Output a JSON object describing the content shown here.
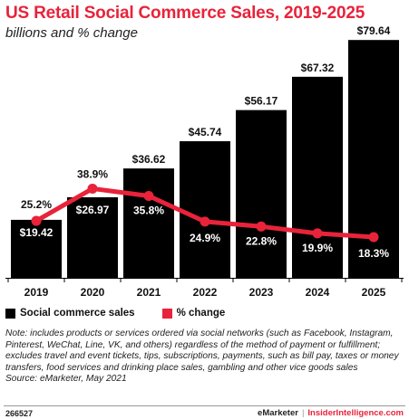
{
  "header": {
    "title": "US Retail Social Commerce Sales, 2019-2025",
    "subtitle": "billions and % change"
  },
  "chart_data": {
    "type": "bar",
    "categories": [
      "2019",
      "2020",
      "2021",
      "2022",
      "2023",
      "2024",
      "2025"
    ],
    "series": [
      {
        "name": "Social commerce sales",
        "type": "bar",
        "values": [
          19.42,
          26.97,
          36.62,
          45.74,
          56.17,
          67.32,
          79.64
        ],
        "labels": [
          "$19.42",
          "$26.97",
          "$36.62",
          "$45.74",
          "$56.17",
          "$67.32",
          "$79.64"
        ],
        "color": "#000000"
      },
      {
        "name": "% change",
        "type": "line",
        "values": [
          25.2,
          38.9,
          35.8,
          24.9,
          22.8,
          19.9,
          18.3
        ],
        "labels": [
          "25.2%",
          "38.9%",
          "35.8%",
          "24.9%",
          "22.8%",
          "19.9%",
          "18.3%"
        ],
        "color": "#e8233a"
      }
    ],
    "legend_position": "bottom-left",
    "grid": false
  },
  "legend": {
    "items": [
      {
        "label": "Social commerce sales",
        "color": "#000000"
      },
      {
        "label": "% change",
        "color": "#e8233a"
      }
    ]
  },
  "note": {
    "text": "Note: includes products or services ordered via social networks (such as Facebook, Instagram, Pinterest, WeChat, Line, VK, and others) regardless of the method of payment or fulfillment; excludes travel and event tickets, tips, subscriptions, payments, such as bill pay, taxes or money transfers, food services and drinking place sales, gambling and other vice goods sales",
    "source": "Source: eMarketer, May 2021"
  },
  "footer": {
    "id": "266527",
    "brand": "eMarketer",
    "separator": "|",
    "site": "InsiderIntelligence.com"
  }
}
